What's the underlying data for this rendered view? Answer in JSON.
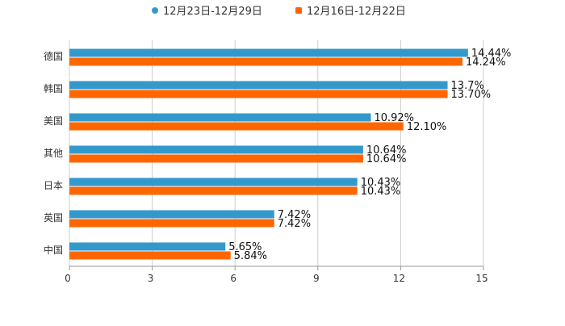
{
  "chart_data": {
    "type": "bar",
    "orientation": "horizontal",
    "categories": [
      "德国",
      "韩国",
      "美国",
      "其他",
      "日本",
      "英国",
      "中国"
    ],
    "series": [
      {
        "name": "12月23日-12月29日",
        "color": "#3399cc",
        "values": [
          14.44,
          13.7,
          10.92,
          10.64,
          10.43,
          7.42,
          5.65
        ],
        "labels": [
          "14.44%",
          "13.7%",
          "10.92%",
          "10.64%",
          "10.43%",
          "7.42%",
          "5.65%"
        ]
      },
      {
        "name": "12月16日-12月22日",
        "color": "#ff6600",
        "values": [
          14.24,
          13.7,
          12.1,
          10.64,
          10.43,
          7.42,
          5.84
        ],
        "labels": [
          "14.24%",
          "13.70%",
          "12.10%",
          "10.64%",
          "10.43%",
          "7.42%",
          "5.84%"
        ]
      }
    ],
    "xlim": [
      0,
      15
    ],
    "xticks": [
      0,
      3,
      6,
      9,
      12,
      15
    ],
    "xtick_labels": [
      "0",
      "3",
      "6",
      "9",
      "12",
      "15"
    ],
    "grid": true,
    "legend_position": "top-center"
  }
}
